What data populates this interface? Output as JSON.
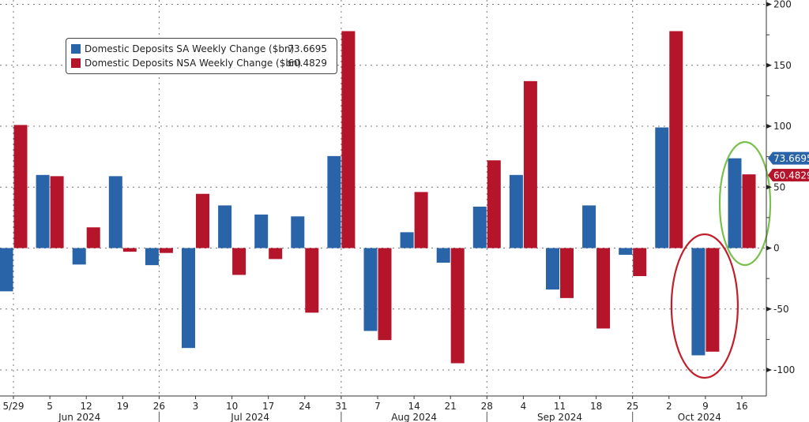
{
  "chart_data": {
    "type": "bar",
    "title": "",
    "xlabel": "",
    "ylabel": "",
    "ylim": [
      -110,
      200
    ],
    "yticks": [
      -100,
      -50,
      0,
      50,
      100,
      150,
      200
    ],
    "grid": true,
    "legend_position": "top-left",
    "categories": [
      "5/29",
      "5",
      "12",
      "19",
      "26",
      "3",
      "10",
      "17",
      "24",
      "31",
      "7",
      "14",
      "21",
      "28",
      "4",
      "11",
      "18",
      "25",
      "2",
      "9",
      "16"
    ],
    "months": [
      {
        "label": "Jun 2024",
        "start_index": 0,
        "end_index": 4
      },
      {
        "label": "Jul 2024",
        "start_index": 4,
        "end_index": 9
      },
      {
        "label": "Aug 2024",
        "start_index": 9,
        "end_index": 13
      },
      {
        "label": "Sep 2024",
        "start_index": 13,
        "end_index": 17
      },
      {
        "label": "Oct 2024",
        "start_index": 17,
        "end_index": 20
      }
    ],
    "series": [
      {
        "name": "Domestic Deposits SA Weekly Change ($bn)",
        "last_value": "73.6695",
        "color": "#2a64a8",
        "values": [
          -35.5,
          60,
          -13.5,
          59,
          -14,
          -82,
          35,
          27.5,
          26,
          75.5,
          -68,
          13,
          -12,
          34,
          60,
          -34,
          35,
          -5.5,
          99,
          -88,
          73.6695
        ]
      },
      {
        "name": "Domestic Deposits NSA Weekly Change ($bn)",
        "last_value": "60.4829",
        "color": "#b5152b",
        "values": [
          101,
          59,
          17,
          -3,
          -4,
          44.5,
          -22,
          -9,
          -53,
          178,
          -75.5,
          46,
          -94.5,
          72,
          137,
          -41,
          -66,
          -23,
          178,
          -85,
          60.4829
        ]
      }
    ],
    "annotations": [
      {
        "type": "ellipse",
        "color": "#c0202a",
        "around_index": 19,
        "note": "Oct 9 outflows circled"
      },
      {
        "type": "ellipse",
        "color": "#7ac04f",
        "around_index": 20,
        "note": "Oct 16 inflows circled"
      }
    ]
  }
}
